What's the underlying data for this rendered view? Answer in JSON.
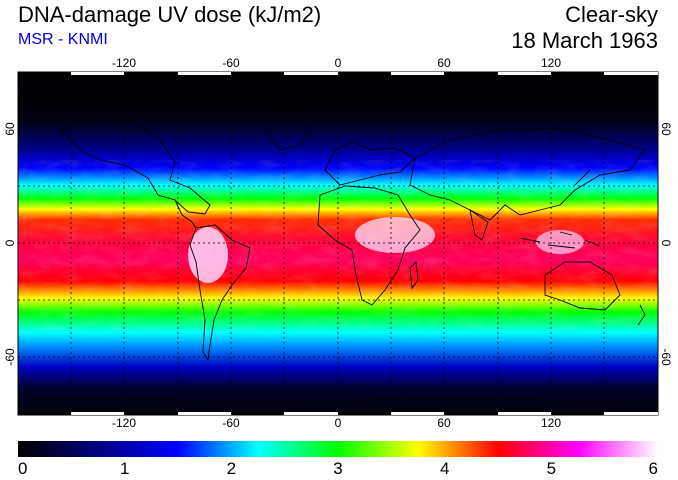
{
  "header": {
    "title": "DNA-damage UV dose (kJ/m2)",
    "subtitle": "MSR - KNMI",
    "condition": "Clear-sky",
    "date": "18 March 1963"
  },
  "map": {
    "lon_ticks": [
      "-120",
      "-60",
      "0",
      "60",
      "120"
    ],
    "lat_ticks": [
      "60",
      "0",
      "-60"
    ],
    "lon_range": [
      -180,
      180
    ],
    "lat_range": [
      -90,
      90
    ],
    "grid": "dotted every 30 degrees",
    "colors": {
      "background": "#000000",
      "coastline": "#000000",
      "grid": "#000000"
    }
  },
  "colorbar": {
    "ticks": [
      "0",
      "1",
      "2",
      "3",
      "4",
      "5",
      "6"
    ],
    "min": 0,
    "max": 6,
    "stops": [
      "#000000",
      "#000080",
      "#0000ff",
      "#00ffff",
      "#00ff00",
      "#ffff00",
      "#ff0000",
      "#ff00ff",
      "#ffffff"
    ]
  }
}
